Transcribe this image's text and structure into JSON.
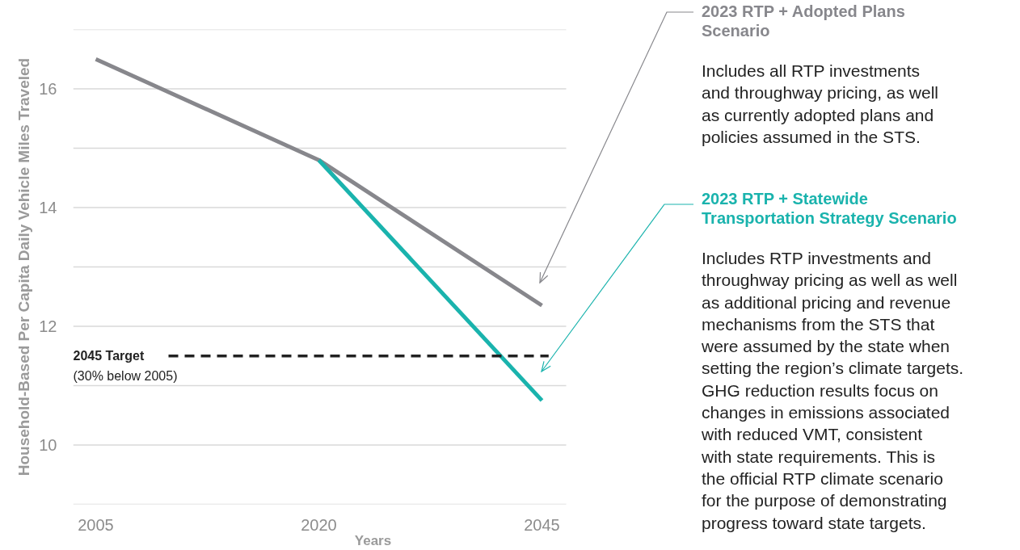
{
  "chart_data": {
    "type": "line",
    "xlabel": "Years",
    "ylabel": "Household-Based Per Capita Daily Vehicle Miles Traveled",
    "categories": [
      "2005",
      "2020",
      "2045"
    ],
    "series": [
      {
        "name": "2023 RTP + Adopted Plans\nScenario",
        "color": "#87878c",
        "values": [
          16.5,
          14.8,
          12.35
        ]
      },
      {
        "name": "2023 RTP + Statewide\nTransportation Strategy Scenario",
        "color": "#1ab3ad",
        "values": [
          null,
          14.8,
          10.75
        ]
      }
    ],
    "ylim": [
      9,
      17
    ],
    "yticks": [
      {
        "value": 9,
        "label": null
      },
      10,
      {
        "value": 11,
        "label": null
      },
      12,
      {
        "value": 13,
        "label": null
      },
      14,
      {
        "value": 15,
        "label": null
      },
      16,
      {
        "value": 17,
        "label": null
      }
    ],
    "grid": "y",
    "legend": "right",
    "marker": "none",
    "line_style": "solid",
    "ref_lines": [
      {
        "axis": "y",
        "value": 11.5,
        "label": "2045 Target",
        "color": "#222222",
        "line_style": "dashed"
      }
    ],
    "annotations": [
      "Includes all RTP investments\nand throughway pricing, as well\nas currently adopted plans and\npolicies assumed in the STS.",
      "Includes RTP investments and\nthroughway pricing as well as well\nas additional pricing and revenue\nmechanisms from the STS that\nwere assumed by the state when\nsetting the region’s climate targets.\nGHG reduction results focus on\nchanges in emissions associated\nwith reduced VMT, consistent\nwith state requirements. This is\nthe official RTP climate scenario\nfor the purpose of demonstrating\nprogress toward state targets.",
      "(30% below 2005)"
    ]
  }
}
